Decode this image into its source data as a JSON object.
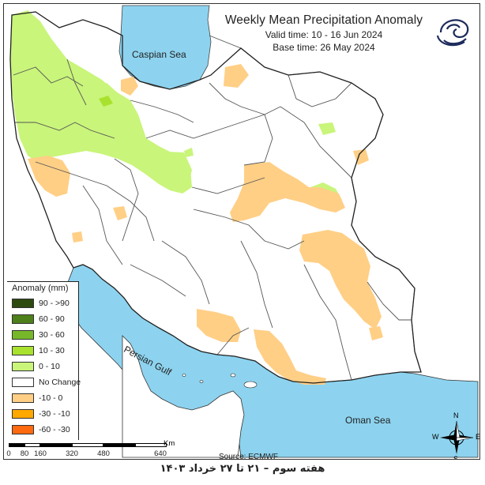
{
  "title": "Weekly Mean Precipitation Anomaly",
  "valid_time": "Valid time: 10 - 16 Jun 2024",
  "base_time": "Base time: 26 May 2024",
  "legend": {
    "title": "Anomaly (mm)",
    "items": [
      {
        "label": "90 - >90",
        "color": "#2d4a0e"
      },
      {
        "label": "60 - 90",
        "color": "#4d7f1a"
      },
      {
        "label": "30 - 60",
        "color": "#76b82a"
      },
      {
        "label": "10 - 30",
        "color": "#a8e22e"
      },
      {
        "label": "0 - 10",
        "color": "#c9f57a"
      },
      {
        "label": "No Change",
        "color": "#ffffff"
      },
      {
        "label": "-10 - 0",
        "color": "#ffcf86"
      },
      {
        "label": "-30 - -10",
        "color": "#ffa800"
      },
      {
        "label": "-60 - -30",
        "color": "#ff6a10"
      }
    ]
  },
  "water_labels": {
    "caspian": "Caspian Sea",
    "gulf": "Persian Gulf",
    "oman": "Oman Sea"
  },
  "scale": {
    "ticks": [
      "0",
      "80",
      "160",
      "320",
      "480",
      "640"
    ],
    "unit": "Km"
  },
  "source": "Source: ECMWF",
  "compass": {
    "n": "N",
    "s": "S",
    "e": "E",
    "w": "W"
  },
  "footer": "هفته سوم – ۲۱ تا ۲۷ خرداد ۱۴۰۳",
  "colors": {
    "water": "#8dd3ef",
    "land": "#ffffff",
    "border": "#555555"
  }
}
